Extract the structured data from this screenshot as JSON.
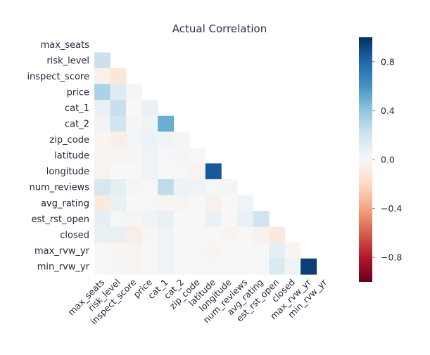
{
  "chart_data": {
    "type": "heatmap",
    "title": "Actual Correlation",
    "variables": [
      "max_seats",
      "risk_level",
      "inspect_score",
      "price",
      "cat_1",
      "cat_2",
      "zip_code",
      "latitude",
      "longitude",
      "num_reviews",
      "avg_rating",
      "est_rst_open",
      "closed",
      "max_rvw_yr",
      "min_rvw_yr"
    ],
    "mask": "upper triangle incl. diagonal",
    "colormap": "RdBu (red = -1, white = 0, blue = +1)",
    "vmin": -1,
    "vmax": 1,
    "colorbar_ticks": [
      0.8,
      0.4,
      0.0,
      -0.4,
      -0.8
    ],
    "colorbar_tick_labels": [
      "0.8",
      "0.4",
      "0.0",
      "−0.4",
      "−0.8"
    ],
    "lower_triangle_rows": [
      [],
      [
        0.22
      ],
      [
        -0.05,
        -0.12
      ],
      [
        0.32,
        0.13,
        0.02
      ],
      [
        0.07,
        0.23,
        0.0,
        0.08
      ],
      [
        0.03,
        0.2,
        0.02,
        0.04,
        0.5
      ],
      [
        -0.02,
        -0.06,
        0.02,
        0.06,
        0.03,
        0.02
      ],
      [
        -0.02,
        -0.02,
        -0.02,
        0.04,
        0.01,
        0.02,
        0.0
      ],
      [
        -0.03,
        0.0,
        0.0,
        0.04,
        0.0,
        0.01,
        -0.03,
        0.85
      ],
      [
        0.18,
        0.1,
        0.02,
        0.01,
        0.26,
        0.06,
        0.04,
        0.01,
        0.02
      ],
      [
        -0.1,
        0.07,
        0.0,
        0.01,
        -0.02,
        -0.02,
        0.0,
        -0.05,
        0.0,
        0.05
      ],
      [
        0.09,
        0.01,
        -0.02,
        0.04,
        0.08,
        0.0,
        0.0,
        0.07,
        0.0,
        0.07,
        0.2
      ],
      [
        0.08,
        0.08,
        -0.07,
        -0.02,
        0.04,
        0.0,
        -0.01,
        0.0,
        -0.02,
        0.0,
        -0.04,
        -0.1
      ],
      [
        0.0,
        -0.02,
        -0.03,
        0.0,
        0.04,
        0.0,
        0.01,
        -0.02,
        0.0,
        0.0,
        0.0,
        0.1,
        -0.02
      ],
      [
        0.0,
        0.02,
        -0.02,
        0.0,
        0.04,
        0.0,
        0.01,
        0.01,
        0.0,
        0.0,
        0.01,
        0.15,
        0.05,
        0.95
      ]
    ]
  }
}
